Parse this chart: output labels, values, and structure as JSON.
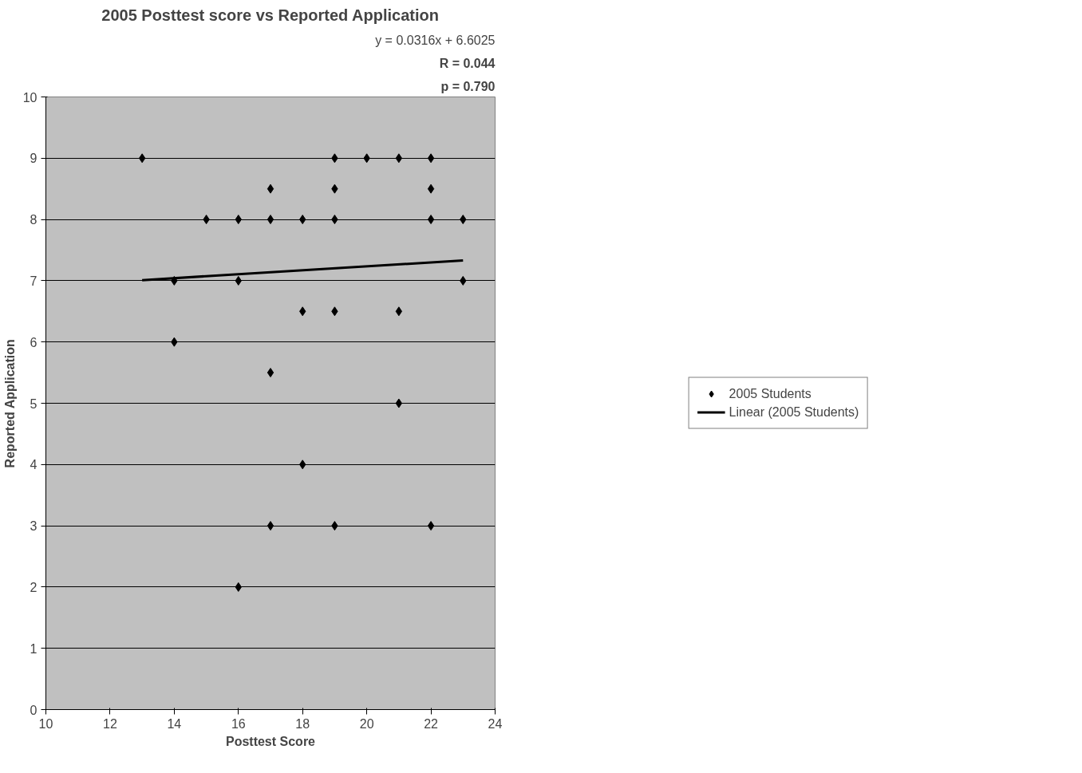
{
  "chart_data": {
    "type": "scatter",
    "title": "2005 Posttest score vs Reported Application",
    "xlabel": "Posttest Score",
    "ylabel": "Reported Application",
    "annotations": [
      "y = 0.0316x + 6.6025",
      "R = 0.044",
      "p = 0.790"
    ],
    "series": [
      {
        "name": "2005 Students",
        "color": "#000000",
        "marker": "diamond",
        "x": [
          13,
          14,
          14,
          15,
          16,
          16,
          16,
          17,
          17,
          17,
          17,
          18,
          18,
          18,
          19,
          19,
          19,
          19,
          19,
          20,
          21,
          21,
          21,
          22,
          22,
          22,
          22,
          23,
          23
        ],
        "values": [
          9,
          7,
          6,
          8,
          8,
          7,
          2,
          8.5,
          8,
          5.5,
          3,
          8,
          6.5,
          4,
          9,
          8.5,
          8,
          6.5,
          3,
          9,
          9,
          6.5,
          5,
          9,
          8.5,
          8,
          3,
          8,
          7
        ]
      },
      {
        "name": "Linear (2005 Students)",
        "type": "line",
        "color": "#000000",
        "line_style": "solid",
        "x": [
          13,
          23
        ],
        "values": [
          7.01,
          7.33
        ]
      }
    ],
    "xlim": [
      10,
      24
    ],
    "xticks": [
      10,
      12,
      14,
      16,
      18,
      20,
      22,
      24
    ],
    "ylim": [
      0,
      10
    ],
    "yticks": [
      0,
      1,
      2,
      3,
      4,
      5,
      6,
      7,
      8,
      9,
      10
    ],
    "grid": "y",
    "legend": "right"
  }
}
